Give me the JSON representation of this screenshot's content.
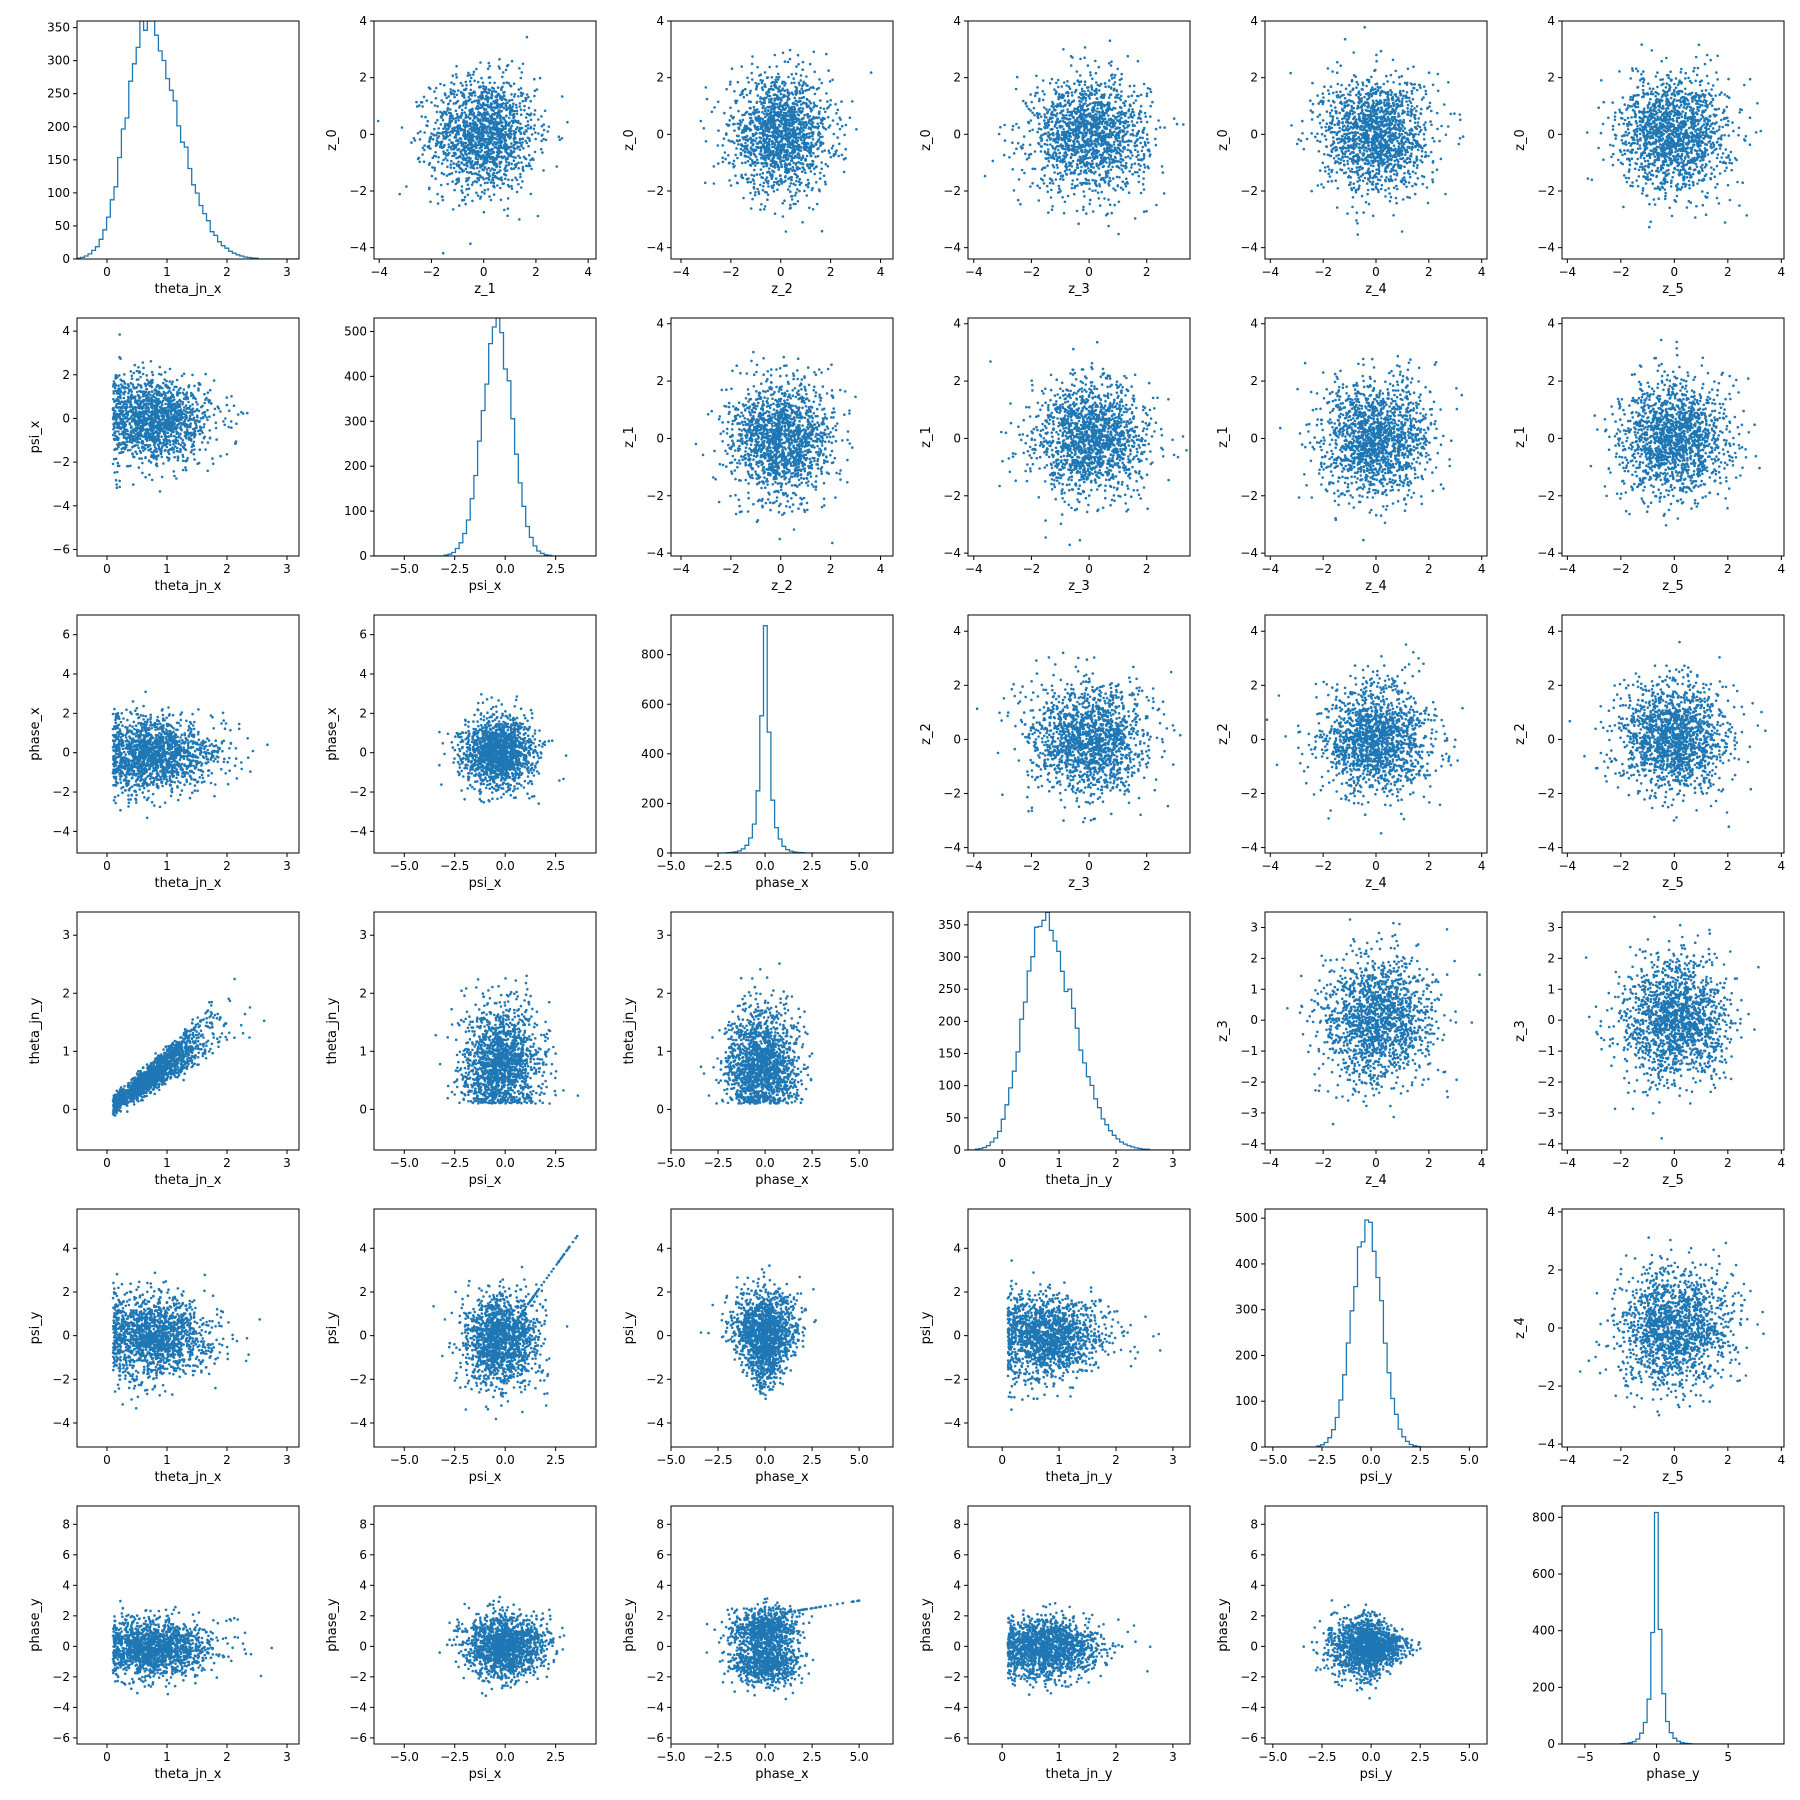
{
  "chart_data": {
    "type": "scatter",
    "layout": "corner-plot",
    "grid": false,
    "legend": "none",
    "color": "#1f77b4",
    "rows": 6,
    "cols": 6,
    "panels": [
      {
        "row": 0,
        "col": 0,
        "type": "hist",
        "xlabel": "theta_jn_x",
        "ylabel": "",
        "xlim": [
          -0.5,
          3.2
        ],
        "ylim": [
          0,
          360
        ],
        "xticks": [
          0,
          1,
          2,
          3
        ],
        "yticks": [
          0,
          50,
          100,
          150,
          200,
          250,
          300,
          350
        ],
        "dist": {
          "center": 0.65,
          "skew": 0.8,
          "width": 0.45,
          "peak": 350,
          "tail": 2.8
        }
      },
      {
        "row": 0,
        "col": 1,
        "type": "scatter",
        "xlabel": "z_1",
        "ylabel": "z_0",
        "xlim": [
          -4.2,
          4.3
        ],
        "ylim": [
          -4.4,
          4.0
        ],
        "xticks": [
          -4,
          -2,
          0,
          2,
          4
        ],
        "yticks": [
          -4,
          -2,
          0,
          2,
          4
        ],
        "pattern": "gauss"
      },
      {
        "row": 0,
        "col": 2,
        "type": "scatter",
        "xlabel": "z_2",
        "ylabel": "z_0",
        "xlim": [
          -4.4,
          4.5
        ],
        "ylim": [
          -4.4,
          4.0
        ],
        "xticks": [
          -4,
          -2,
          0,
          2,
          4
        ],
        "yticks": [
          -4,
          -2,
          0,
          2,
          4
        ],
        "pattern": "gauss"
      },
      {
        "row": 0,
        "col": 3,
        "type": "scatter",
        "xlabel": "z_3",
        "ylabel": "z_0",
        "xlim": [
          -4.2,
          3.5
        ],
        "ylim": [
          -4.4,
          4.0
        ],
        "xticks": [
          -4,
          -2,
          0,
          2
        ],
        "yticks": [
          -4,
          -2,
          0,
          2,
          4
        ],
        "pattern": "gauss"
      },
      {
        "row": 0,
        "col": 4,
        "type": "scatter",
        "xlabel": "z_4",
        "ylabel": "z_0",
        "xlim": [
          -4.2,
          4.2
        ],
        "ylim": [
          -4.4,
          4.0
        ],
        "xticks": [
          -4,
          -2,
          0,
          2,
          4
        ],
        "yticks": [
          -4,
          -2,
          0,
          2,
          4
        ],
        "pattern": "gauss"
      },
      {
        "row": 0,
        "col": 5,
        "type": "scatter",
        "xlabel": "z_5",
        "ylabel": "z_0",
        "xlim": [
          -4.2,
          4.1
        ],
        "ylim": [
          -4.4,
          4.0
        ],
        "xticks": [
          -4,
          -2,
          0,
          2,
          4
        ],
        "yticks": [
          -4,
          -2,
          0,
          2,
          4
        ],
        "pattern": "gauss"
      },
      {
        "row": 1,
        "col": 0,
        "type": "scatter",
        "xlabel": "theta_jn_x",
        "ylabel": "psi_x",
        "xlim": [
          -0.5,
          3.2
        ],
        "ylim": [
          -6.3,
          4.6
        ],
        "xticks": [
          0,
          1,
          2,
          3
        ],
        "yticks": [
          -6,
          -4,
          -2,
          0,
          2,
          4
        ],
        "pattern": "theta_gauss"
      },
      {
        "row": 1,
        "col": 1,
        "type": "hist",
        "xlabel": "psi_x",
        "ylabel": "",
        "xlim": [
          -6.5,
          4.5
        ],
        "ylim": [
          0,
          530
        ],
        "xticks": [
          -5.0,
          -2.5,
          0.0,
          2.5
        ],
        "yticks": [
          0,
          100,
          200,
          300,
          400,
          500
        ],
        "dist": {
          "center": -0.4,
          "skew": 0,
          "width": 0.75,
          "peak": 505,
          "tail": 0
        }
      },
      {
        "row": 1,
        "col": 2,
        "type": "scatter",
        "xlabel": "z_2",
        "ylabel": "z_1",
        "xlim": [
          -4.4,
          4.5
        ],
        "ylim": [
          -4.1,
          4.2
        ],
        "xticks": [
          -4,
          -2,
          0,
          2,
          4
        ],
        "yticks": [
          -4,
          -2,
          0,
          2,
          4
        ],
        "pattern": "gauss"
      },
      {
        "row": 1,
        "col": 3,
        "type": "scatter",
        "xlabel": "z_3",
        "ylabel": "z_1",
        "xlim": [
          -4.2,
          3.5
        ],
        "ylim": [
          -4.1,
          4.2
        ],
        "xticks": [
          -4,
          -2,
          0,
          2
        ],
        "yticks": [
          -4,
          -2,
          0,
          2,
          4
        ],
        "pattern": "gauss"
      },
      {
        "row": 1,
        "col": 4,
        "type": "scatter",
        "xlabel": "z_4",
        "ylabel": "z_1",
        "xlim": [
          -4.2,
          4.2
        ],
        "ylim": [
          -4.1,
          4.2
        ],
        "xticks": [
          -4,
          -2,
          0,
          2,
          4
        ],
        "yticks": [
          -4,
          -2,
          0,
          2,
          4
        ],
        "pattern": "gauss"
      },
      {
        "row": 1,
        "col": 5,
        "type": "scatter",
        "xlabel": "z_5",
        "ylabel": "z_1",
        "xlim": [
          -4.2,
          4.1
        ],
        "ylim": [
          -4.1,
          4.2
        ],
        "xticks": [
          -4,
          -2,
          0,
          2,
          4
        ],
        "yticks": [
          -4,
          -2,
          0,
          2,
          4
        ],
        "pattern": "gauss"
      },
      {
        "row": 2,
        "col": 0,
        "type": "scatter",
        "xlabel": "theta_jn_x",
        "ylabel": "phase_x",
        "xlim": [
          -0.5,
          3.2
        ],
        "ylim": [
          -5.1,
          7.0
        ],
        "xticks": [
          0,
          1,
          2,
          3
        ],
        "yticks": [
          -4,
          -2,
          0,
          2,
          4,
          6
        ],
        "pattern": "theta_gauss"
      },
      {
        "row": 2,
        "col": 1,
        "type": "scatter",
        "xlabel": "psi_x",
        "ylabel": "phase_x",
        "xlim": [
          -6.5,
          4.5
        ],
        "ylim": [
          -5.1,
          7.0
        ],
        "xticks": [
          -5.0,
          -2.5,
          0.0,
          2.5
        ],
        "yticks": [
          -4,
          -2,
          0,
          2,
          4,
          6
        ],
        "pattern": "butterfly"
      },
      {
        "row": 2,
        "col": 2,
        "type": "hist",
        "xlabel": "phase_x",
        "ylabel": "",
        "xlim": [
          -5.0,
          6.8
        ],
        "ylim": [
          0,
          960
        ],
        "xticks": [
          -5.0,
          -2.5,
          0.0,
          2.5,
          5.0
        ],
        "yticks": [
          0,
          200,
          400,
          600,
          800
        ],
        "dist": {
          "center": 0,
          "skew": 0,
          "width": 0.35,
          "peak": 930,
          "tail": 1
        }
      },
      {
        "row": 2,
        "col": 3,
        "type": "scatter",
        "xlabel": "z_3",
        "ylabel": "z_2",
        "xlim": [
          -4.2,
          3.5
        ],
        "ylim": [
          -4.2,
          4.6
        ],
        "xticks": [
          -4,
          -2,
          0,
          2
        ],
        "yticks": [
          -4,
          -2,
          0,
          2,
          4
        ],
        "pattern": "gauss"
      },
      {
        "row": 2,
        "col": 4,
        "type": "scatter",
        "xlabel": "z_4",
        "ylabel": "z_2",
        "xlim": [
          -4.2,
          4.2
        ],
        "ylim": [
          -4.2,
          4.6
        ],
        "xticks": [
          -4,
          -2,
          0,
          2,
          4
        ],
        "yticks": [
          -4,
          -2,
          0,
          2,
          4
        ],
        "pattern": "gauss"
      },
      {
        "row": 2,
        "col": 5,
        "type": "scatter",
        "xlabel": "z_5",
        "ylabel": "z_2",
        "xlim": [
          -4.2,
          4.1
        ],
        "ylim": [
          -4.2,
          4.6
        ],
        "xticks": [
          -4,
          -2,
          0,
          2,
          4
        ],
        "yticks": [
          -4,
          -2,
          0,
          2,
          4
        ],
        "pattern": "gauss"
      },
      {
        "row": 3,
        "col": 0,
        "type": "scatter",
        "xlabel": "theta_jn_x",
        "ylabel": "theta_jn_y",
        "xlim": [
          -0.5,
          3.2
        ],
        "ylim": [
          -0.7,
          3.4
        ],
        "xticks": [
          0,
          1,
          2,
          3
        ],
        "yticks": [
          0,
          1,
          2,
          3
        ],
        "pattern": "correlated"
      },
      {
        "row": 3,
        "col": 1,
        "type": "scatter",
        "xlabel": "psi_x",
        "ylabel": "theta_jn_y",
        "xlim": [
          -6.5,
          4.5
        ],
        "ylim": [
          -0.7,
          3.4
        ],
        "xticks": [
          -5.0,
          -2.5,
          0.0,
          2.5
        ],
        "yticks": [
          0,
          1,
          2,
          3
        ],
        "pattern": "gauss_theta"
      },
      {
        "row": 3,
        "col": 2,
        "type": "scatter",
        "xlabel": "phase_x",
        "ylabel": "theta_jn_y",
        "xlim": [
          -5.0,
          6.8
        ],
        "ylim": [
          -0.7,
          3.4
        ],
        "xticks": [
          -5.0,
          -2.5,
          0.0,
          2.5,
          5.0
        ],
        "yticks": [
          0,
          1,
          2,
          3
        ],
        "pattern": "gauss_theta"
      },
      {
        "row": 3,
        "col": 3,
        "type": "hist",
        "xlabel": "theta_jn_y",
        "ylabel": "",
        "xlim": [
          -0.6,
          3.3
        ],
        "ylim": [
          0,
          370
        ],
        "xticks": [
          0,
          1,
          2,
          3
        ],
        "yticks": [
          0,
          50,
          100,
          150,
          200,
          250,
          300,
          350
        ],
        "dist": {
          "center": 0.7,
          "skew": 0.8,
          "width": 0.45,
          "peak": 355,
          "tail": 3.1
        }
      },
      {
        "row": 3,
        "col": 4,
        "type": "scatter",
        "xlabel": "z_4",
        "ylabel": "z_3",
        "xlim": [
          -4.2,
          4.2
        ],
        "ylim": [
          -4.2,
          3.5
        ],
        "xticks": [
          -4,
          -2,
          0,
          2,
          4
        ],
        "yticks": [
          -4,
          -3,
          -2,
          -1,
          0,
          1,
          2,
          3
        ],
        "pattern": "gauss"
      },
      {
        "row": 3,
        "col": 5,
        "type": "scatter",
        "xlabel": "z_5",
        "ylabel": "z_3",
        "xlim": [
          -4.2,
          4.1
        ],
        "ylim": [
          -4.2,
          3.5
        ],
        "xticks": [
          -4,
          -2,
          0,
          2,
          4
        ],
        "yticks": [
          -4,
          -3,
          -2,
          -1,
          0,
          1,
          2,
          3
        ],
        "pattern": "gauss"
      },
      {
        "row": 4,
        "col": 0,
        "type": "scatter",
        "xlabel": "theta_jn_x",
        "ylabel": "psi_y",
        "xlim": [
          -0.5,
          3.2
        ],
        "ylim": [
          -5.1,
          5.8
        ],
        "xticks": [
          0,
          1,
          2,
          3
        ],
        "yticks": [
          -4,
          -2,
          0,
          2,
          4
        ],
        "pattern": "theta_gauss"
      },
      {
        "row": 4,
        "col": 1,
        "type": "scatter",
        "xlabel": "psi_x",
        "ylabel": "psi_y",
        "xlim": [
          -6.5,
          4.5
        ],
        "ylim": [
          -5.1,
          5.8
        ],
        "xticks": [
          -5.0,
          -2.5,
          0.0,
          2.5
        ],
        "yticks": [
          -4,
          -2,
          0,
          2,
          4
        ],
        "pattern": "psi_psi"
      },
      {
        "row": 4,
        "col": 2,
        "type": "scatter",
        "xlabel": "phase_x",
        "ylabel": "psi_y",
        "xlim": [
          -5.0,
          6.8
        ],
        "ylim": [
          -5.1,
          5.8
        ],
        "xticks": [
          -5.0,
          -2.5,
          0.0,
          2.5,
          5.0
        ],
        "yticks": [
          -4,
          -2,
          0,
          2,
          4
        ],
        "pattern": "funnel"
      },
      {
        "row": 4,
        "col": 3,
        "type": "scatter",
        "xlabel": "theta_jn_y",
        "ylabel": "psi_y",
        "xlim": [
          -0.6,
          3.3
        ],
        "ylim": [
          -5.1,
          5.8
        ],
        "xticks": [
          0,
          1,
          2,
          3
        ],
        "yticks": [
          -4,
          -2,
          0,
          2,
          4
        ],
        "pattern": "theta_gauss"
      },
      {
        "row": 4,
        "col": 4,
        "type": "hist",
        "xlabel": "psi_y",
        "ylabel": "",
        "xlim": [
          -5.4,
          5.9
        ],
        "ylim": [
          0,
          520
        ],
        "xticks": [
          -5.0,
          -2.5,
          0.0,
          2.5,
          5.0
        ],
        "yticks": [
          0,
          100,
          200,
          300,
          400,
          500
        ],
        "dist": {
          "center": -0.2,
          "skew": 0,
          "width": 0.75,
          "peak": 490,
          "tail": 0
        }
      },
      {
        "row": 4,
        "col": 5,
        "type": "scatter",
        "xlabel": "z_5",
        "ylabel": "z_4",
        "xlim": [
          -4.2,
          4.1
        ],
        "ylim": [
          -4.1,
          4.1
        ],
        "xticks": [
          -4,
          -2,
          0,
          2,
          4
        ],
        "yticks": [
          -4,
          -2,
          0,
          2,
          4
        ],
        "pattern": "gauss"
      },
      {
        "row": 5,
        "col": 0,
        "type": "scatter",
        "xlabel": "theta_jn_x",
        "ylabel": "phase_y",
        "xlim": [
          -0.5,
          3.2
        ],
        "ylim": [
          -6.4,
          9.2
        ],
        "xticks": [
          0,
          1,
          2,
          3
        ],
        "yticks": [
          -6,
          -4,
          -2,
          0,
          2,
          4,
          6,
          8
        ],
        "pattern": "theta_gauss"
      },
      {
        "row": 5,
        "col": 1,
        "type": "scatter",
        "xlabel": "psi_x",
        "ylabel": "phase_y",
        "xlim": [
          -6.5,
          4.5
        ],
        "ylim": [
          -6.4,
          9.2
        ],
        "xticks": [
          -5.0,
          -2.5,
          0.0,
          2.5
        ],
        "yticks": [
          -6,
          -4,
          -2,
          0,
          2,
          4,
          6,
          8
        ],
        "pattern": "gauss"
      },
      {
        "row": 5,
        "col": 2,
        "type": "scatter",
        "xlabel": "phase_x",
        "ylabel": "phase_y",
        "xlim": [
          -5.0,
          6.8
        ],
        "ylim": [
          -6.4,
          9.2
        ],
        "xticks": [
          -5.0,
          -2.5,
          0.0,
          2.5,
          5.0
        ],
        "yticks": [
          -6,
          -4,
          -2,
          0,
          2,
          4,
          6,
          8
        ],
        "pattern": "phase_phase"
      },
      {
        "row": 5,
        "col": 3,
        "type": "scatter",
        "xlabel": "theta_jn_y",
        "ylabel": "phase_y",
        "xlim": [
          -0.6,
          3.3
        ],
        "ylim": [
          -6.4,
          9.2
        ],
        "xticks": [
          0,
          1,
          2,
          3
        ],
        "yticks": [
          -6,
          -4,
          -2,
          0,
          2,
          4,
          6,
          8
        ],
        "pattern": "theta_gauss"
      },
      {
        "row": 5,
        "col": 4,
        "type": "scatter",
        "xlabel": "psi_y",
        "ylabel": "phase_y",
        "xlim": [
          -5.4,
          5.9
        ],
        "ylim": [
          -6.4,
          9.2
        ],
        "xticks": [
          -5.0,
          -2.5,
          0.0,
          2.5,
          5.0
        ],
        "yticks": [
          -6,
          -4,
          -2,
          0,
          2,
          4,
          6,
          8
        ],
        "pattern": "psi_phase"
      },
      {
        "row": 5,
        "col": 5,
        "type": "hist",
        "xlabel": "phase_y",
        "ylabel": "",
        "xlim": [
          -6.6,
          8.9
        ],
        "ylim": [
          0,
          840
        ],
        "xticks": [
          -5,
          0,
          5
        ],
        "yticks": [
          0,
          200,
          400,
          600,
          800
        ],
        "dist": {
          "center": 0,
          "skew": 0,
          "width": 0.42,
          "peak": 810,
          "tail": 1
        }
      }
    ]
  }
}
